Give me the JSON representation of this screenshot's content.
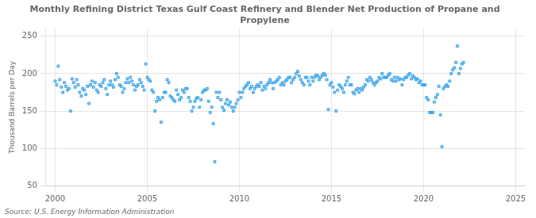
{
  "chart_data": {
    "type": "scatter",
    "title": "Monthly Refining District Texas Gulf Coast Refinery and Blender Net Production of Propane and\nPropylene",
    "ylabel": "Thousand Barrels per Day",
    "source": "Source: U.S. Energy Information Administration",
    "marker": "square",
    "grid": true,
    "xlim": [
      1999.5,
      2025.5
    ],
    "ylim": [
      50,
      260
    ],
    "xticks": [
      2000,
      2005,
      2010,
      2015,
      2020,
      2025
    ],
    "yticks": [
      50,
      100,
      150,
      200,
      250
    ],
    "x": [
      2000.0,
      2000.083,
      2000.167,
      2000.25,
      2000.333,
      2000.417,
      2000.5,
      2000.583,
      2000.667,
      2000.75,
      2000.833,
      2000.917,
      2001.0,
      2001.083,
      2001.167,
      2001.25,
      2001.333,
      2001.417,
      2001.5,
      2001.583,
      2001.667,
      2001.75,
      2001.833,
      2001.917,
      2002.0,
      2002.083,
      2002.167,
      2002.25,
      2002.333,
      2002.417,
      2002.5,
      2002.583,
      2002.667,
      2002.75,
      2002.833,
      2002.917,
      2003.0,
      2003.083,
      2003.167,
      2003.25,
      2003.333,
      2003.417,
      2003.5,
      2003.583,
      2003.667,
      2003.75,
      2003.833,
      2003.917,
      2004.0,
      2004.083,
      2004.167,
      2004.25,
      2004.333,
      2004.417,
      2004.5,
      2004.583,
      2004.667,
      2004.75,
      2004.833,
      2004.917,
      2005.0,
      2005.083,
      2005.167,
      2005.25,
      2005.333,
      2005.417,
      2005.5,
      2005.583,
      2005.667,
      2005.75,
      2005.833,
      2005.917,
      2006.0,
      2006.083,
      2006.167,
      2006.25,
      2006.333,
      2006.417,
      2006.5,
      2006.583,
      2006.667,
      2006.75,
      2006.833,
      2006.917,
      2007.0,
      2007.083,
      2007.167,
      2007.25,
      2007.333,
      2007.417,
      2007.5,
      2007.583,
      2007.667,
      2007.75,
      2007.833,
      2007.917,
      2008.0,
      2008.083,
      2008.167,
      2008.25,
      2008.333,
      2008.417,
      2008.5,
      2008.583,
      2008.667,
      2008.75,
      2008.833,
      2008.917,
      2009.0,
      2009.083,
      2009.167,
      2009.25,
      2009.333,
      2009.417,
      2009.5,
      2009.583,
      2009.667,
      2009.75,
      2009.833,
      2009.917,
      2010.0,
      2010.083,
      2010.167,
      2010.25,
      2010.333,
      2010.417,
      2010.5,
      2010.583,
      2010.667,
      2010.75,
      2010.833,
      2010.917,
      2011.0,
      2011.083,
      2011.167,
      2011.25,
      2011.333,
      2011.417,
      2011.5,
      2011.583,
      2011.667,
      2011.75,
      2011.833,
      2011.917,
      2012.0,
      2012.083,
      2012.167,
      2012.25,
      2012.333,
      2012.417,
      2012.5,
      2012.583,
      2012.667,
      2012.75,
      2012.833,
      2012.917,
      2013.0,
      2013.083,
      2013.167,
      2013.25,
      2013.333,
      2013.417,
      2013.5,
      2013.583,
      2013.667,
      2013.75,
      2013.833,
      2013.917,
      2014.0,
      2014.083,
      2014.167,
      2014.25,
      2014.333,
      2014.417,
      2014.5,
      2014.583,
      2014.667,
      2014.75,
      2014.833,
      2014.917,
      2015.0,
      2015.083,
      2015.167,
      2015.25,
      2015.333,
      2015.417,
      2015.5,
      2015.583,
      2015.667,
      2015.75,
      2015.833,
      2015.917,
      2016.0,
      2016.083,
      2016.167,
      2016.25,
      2016.333,
      2016.417,
      2016.5,
      2016.583,
      2016.667,
      2016.75,
      2016.833,
      2016.917,
      2017.0,
      2017.083,
      2017.167,
      2017.25,
      2017.333,
      2017.417,
      2017.5,
      2017.583,
      2017.667,
      2017.75,
      2017.833,
      2017.917,
      2018.0,
      2018.083,
      2018.167,
      2018.25,
      2018.333,
      2018.417,
      2018.5,
      2018.583,
      2018.667,
      2018.75,
      2018.833,
      2018.917,
      2019.0,
      2019.083,
      2019.167,
      2019.25,
      2019.333,
      2019.417,
      2019.5,
      2019.583,
      2019.667,
      2019.75,
      2019.833,
      2019.917,
      2020.0,
      2020.083,
      2020.167,
      2020.25,
      2020.333,
      2020.417,
      2020.5,
      2020.583,
      2020.667,
      2020.75,
      2020.833,
      2020.917,
      2021.0,
      2021.083,
      2021.167,
      2021.25,
      2021.333,
      2021.417,
      2021.5,
      2021.583,
      2021.667,
      2021.75,
      2021.833,
      2021.917,
      2022.0,
      2022.083,
      2022.167
    ],
    "values": [
      190,
      185,
      210,
      192,
      182,
      175,
      188,
      183,
      178,
      180,
      150,
      193,
      188,
      182,
      192,
      185,
      175,
      170,
      180,
      178,
      172,
      183,
      160,
      185,
      190,
      182,
      188,
      178,
      175,
      185,
      183,
      188,
      192,
      180,
      172,
      185,
      190,
      185,
      182,
      192,
      200,
      195,
      185,
      183,
      175,
      180,
      188,
      193,
      188,
      195,
      190,
      185,
      178,
      183,
      185,
      192,
      188,
      183,
      178,
      213,
      195,
      192,
      190,
      178,
      175,
      150,
      163,
      168,
      165,
      135,
      168,
      175,
      175,
      192,
      188,
      170,
      168,
      165,
      163,
      178,
      172,
      165,
      168,
      178,
      175,
      180,
      180,
      168,
      163,
      150,
      155,
      163,
      167,
      168,
      155,
      165,
      175,
      178,
      178,
      180,
      163,
      148,
      155,
      133,
      82,
      175,
      168,
      175,
      165,
      155,
      151,
      160,
      165,
      158,
      162,
      155,
      150,
      155,
      160,
      165,
      175,
      168,
      175,
      180,
      183,
      185,
      188,
      180,
      183,
      175,
      180,
      183,
      185,
      183,
      188,
      178,
      183,
      180,
      185,
      188,
      192,
      188,
      180,
      188,
      190,
      192,
      195,
      185,
      188,
      185,
      190,
      192,
      195,
      195,
      188,
      192,
      195,
      200,
      203,
      197,
      192,
      188,
      185,
      195,
      195,
      190,
      185,
      195,
      190,
      195,
      198,
      197,
      192,
      195,
      198,
      200,
      198,
      192,
      152,
      185,
      188,
      182,
      175,
      150,
      178,
      185,
      183,
      180,
      175,
      185,
      190,
      195,
      185,
      185,
      175,
      173,
      178,
      180,
      175,
      180,
      178,
      182,
      185,
      192,
      190,
      195,
      192,
      188,
      185,
      188,
      190,
      195,
      193,
      200,
      195,
      195,
      195,
      198,
      200,
      192,
      190,
      195,
      190,
      195,
      192,
      193,
      185,
      192,
      195,
      195,
      198,
      200,
      193,
      197,
      195,
      192,
      193,
      188,
      190,
      185,
      185,
      185,
      168,
      165,
      148,
      148,
      148,
      162,
      168,
      172,
      183,
      145,
      102,
      180,
      183,
      185,
      183,
      190,
      200,
      205,
      208,
      215,
      237,
      200,
      207,
      213,
      215
    ]
  }
}
